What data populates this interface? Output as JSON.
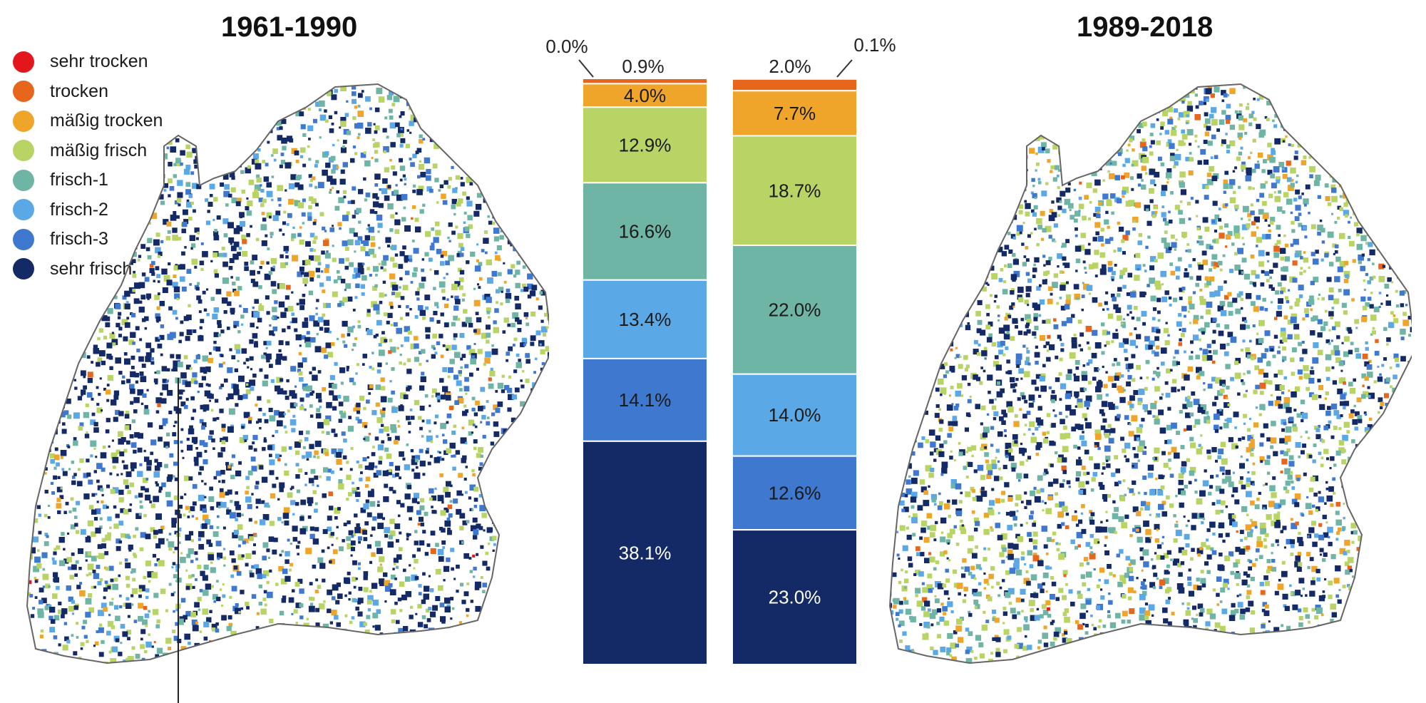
{
  "maps": {
    "left_title": "1961-1990",
    "right_title": "1989-2018"
  },
  "legend": [
    {
      "label": "sehr trocken",
      "color": "#e3171b"
    },
    {
      "label": "trocken",
      "color": "#e8651c"
    },
    {
      "label": "mäßig trocken",
      "color": "#efa42a"
    },
    {
      "label": "mäßig frisch",
      "color": "#b8d465"
    },
    {
      "label": "frisch-1",
      "color": "#6fb5a6"
    },
    {
      "label": "frisch-2",
      "color": "#5aa8e6"
    },
    {
      "label": "frisch-3",
      "color": "#3f78cf"
    },
    {
      "label": "sehr frisch",
      "color": "#142a66"
    }
  ],
  "chart_data": [
    {
      "type": "bar",
      "stacked": true,
      "name": "1961-1990",
      "categories": [
        "sehr trocken",
        "trocken",
        "mäßig trocken",
        "mäßig frisch",
        "frisch-1",
        "frisch-2",
        "frisch-3",
        "sehr frisch"
      ],
      "values": [
        0.0,
        0.9,
        4.0,
        12.9,
        16.6,
        13.4,
        14.1,
        38.1
      ],
      "labels": [
        "0.0%",
        "0.9%",
        "4.0%",
        "12.9%",
        "16.6%",
        "13.4%",
        "14.1%",
        "38.1%"
      ]
    },
    {
      "type": "bar",
      "stacked": true,
      "name": "1989-2018",
      "categories": [
        "sehr trocken",
        "trocken",
        "mäßig trocken",
        "mäßig frisch",
        "frisch-1",
        "frisch-2",
        "frisch-3",
        "sehr frisch"
      ],
      "values": [
        0.1,
        2.0,
        7.7,
        18.7,
        22.0,
        14.0,
        12.6,
        23.0
      ],
      "labels": [
        "0.1%",
        "2.0%",
        "7.7%",
        "18.7%",
        "22.0%",
        "14.0%",
        "12.6%",
        "23.0%"
      ]
    }
  ]
}
